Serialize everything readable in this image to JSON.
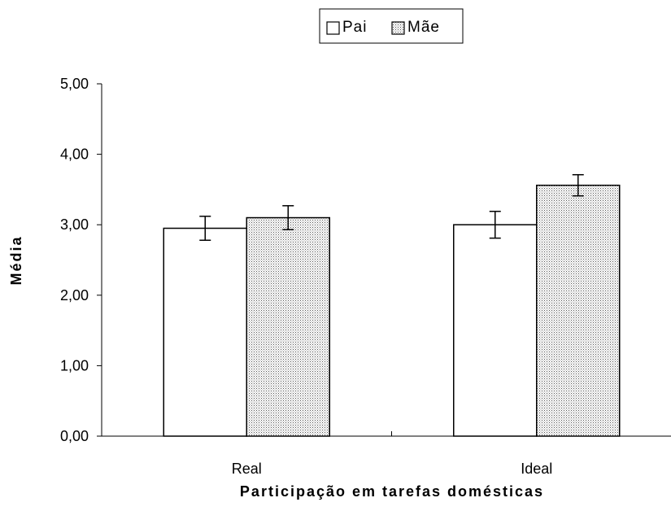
{
  "chart_data": {
    "type": "bar",
    "categories": [
      "Real",
      "Ideal"
    ],
    "series": [
      {
        "name": "Pai",
        "values": [
          2.95,
          3.0
        ],
        "errors": [
          0.17,
          0.19
        ],
        "fill": "#ffffff"
      },
      {
        "name": "Mãe",
        "values": [
          3.1,
          3.56
        ],
        "errors": [
          0.17,
          0.15
        ],
        "fill": "#d9d9d9"
      }
    ],
    "xlabel": "Participação em tarefas domésticas",
    "ylabel": "Média",
    "ylim": [
      0,
      5
    ],
    "yticks": [
      "0,00",
      "1,00",
      "2,00",
      "3,00",
      "4,00",
      "5,00"
    ],
    "grid": false,
    "legend_position": "top-center"
  }
}
